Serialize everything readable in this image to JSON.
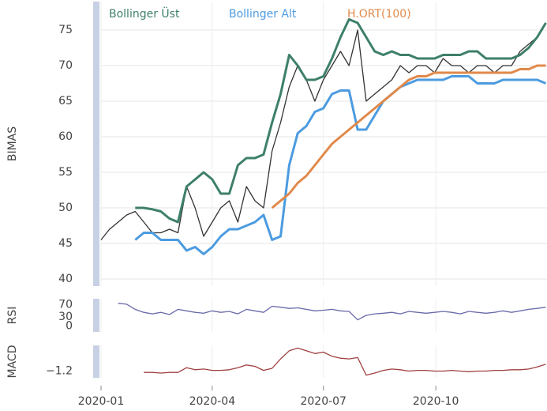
{
  "chart_data": [
    {
      "type": "line",
      "ylabel": "BIMAS",
      "xlim": [
        0,
        365
      ],
      "ylim": [
        39,
        79
      ],
      "yticks": [
        40,
        45,
        50,
        55,
        60,
        65,
        70,
        75
      ],
      "grid": true,
      "legend": "top",
      "x": [
        0,
        7,
        14,
        21,
        28,
        35,
        42,
        49,
        56,
        63,
        70,
        77,
        84,
        91,
        98,
        105,
        112,
        119,
        126,
        133,
        140,
        147,
        154,
        161,
        168,
        175,
        182,
        189,
        196,
        203,
        210,
        217,
        224,
        231,
        238,
        245,
        252,
        259,
        266,
        273,
        280,
        287,
        294,
        301,
        308,
        315,
        322,
        329,
        336,
        343,
        350,
        357,
        364
      ],
      "series": [
        {
          "color": "#333333",
          "values": [
            45.5,
            47,
            48,
            49,
            49.5,
            48,
            46.5,
            46.5,
            47,
            46.5,
            53,
            50,
            46,
            48,
            50,
            51,
            48,
            53,
            51,
            50,
            58,
            62,
            67,
            70,
            68,
            65,
            68,
            70,
            72,
            70,
            75,
            65,
            66,
            67,
            68,
            70,
            69,
            70,
            70,
            69,
            71,
            70,
            70,
            69,
            70,
            70,
            69,
            70,
            70,
            72,
            73,
            74,
            76
          ]
        },
        {
          "name": "Bollinger Üst",
          "color": "#3d7f6b",
          "values": [
            null,
            null,
            null,
            null,
            50,
            50,
            49.8,
            49.5,
            48.5,
            48,
            53,
            54,
            55,
            54,
            52,
            52,
            56,
            57,
            57,
            57.5,
            62,
            66,
            71.5,
            70,
            68,
            68,
            68.5,
            71,
            74,
            76.5,
            76,
            74,
            72,
            71.5,
            72,
            71.5,
            71.5,
            71,
            71,
            71,
            71.5,
            71.5,
            71.5,
            72,
            72,
            71,
            71,
            71,
            71,
            71.5,
            72.5,
            74,
            76
          ]
        },
        {
          "name": "Bollinger Alt",
          "color": "#4c9be0",
          "values": [
            null,
            null,
            null,
            null,
            45.5,
            46.5,
            46.5,
            45.5,
            45.5,
            45.5,
            44,
            44.5,
            43.5,
            44.5,
            46,
            47,
            47,
            47.5,
            48,
            49,
            45.5,
            46,
            56,
            60.5,
            61.5,
            63.5,
            64,
            66,
            66.5,
            66.5,
            61,
            61,
            63,
            65,
            66,
            67,
            67.5,
            68,
            68,
            68,
            68,
            68.5,
            68.5,
            68.5,
            67.5,
            67.5,
            67.5,
            68,
            68,
            68,
            68,
            68,
            67.5
          ]
        },
        {
          "name": "H.ORT(100)",
          "color": "#e0894a",
          "values": [
            null,
            null,
            null,
            null,
            null,
            null,
            null,
            null,
            null,
            null,
            null,
            null,
            null,
            null,
            null,
            null,
            null,
            null,
            null,
            null,
            50,
            51,
            52,
            53.5,
            54.5,
            56,
            57.5,
            59,
            60,
            61,
            62,
            63,
            64,
            65,
            66,
            67,
            68,
            68.5,
            68.5,
            69,
            69,
            69,
            69,
            69,
            69,
            69,
            69,
            69,
            69,
            69.5,
            69.5,
            70,
            70
          ]
        }
      ]
    },
    {
      "type": "line",
      "ylabel": "RSI",
      "xlim": [
        0,
        365
      ],
      "ylim": [
        -20,
        90
      ],
      "yticks": [
        0,
        30,
        70
      ],
      "x": [
        0,
        7,
        14,
        21,
        28,
        35,
        42,
        49,
        56,
        63,
        70,
        77,
        84,
        91,
        98,
        105,
        112,
        119,
        126,
        133,
        140,
        147,
        154,
        161,
        168,
        175,
        182,
        189,
        196,
        203,
        210,
        217,
        224,
        231,
        238,
        245,
        252,
        259,
        266,
        273,
        280,
        287,
        294,
        301,
        308,
        315,
        322,
        329,
        336,
        343,
        350,
        357,
        364
      ],
      "series": [
        {
          "color": "#6a6aaa",
          "values": [
            null,
            null,
            75,
            72,
            55,
            45,
            40,
            45,
            38,
            55,
            50,
            45,
            42,
            50,
            45,
            48,
            40,
            55,
            50,
            45,
            65,
            62,
            58,
            60,
            55,
            50,
            52,
            55,
            50,
            48,
            20,
            35,
            40,
            42,
            45,
            40,
            48,
            45,
            42,
            45,
            48,
            45,
            40,
            48,
            45,
            42,
            45,
            50,
            45,
            50,
            55,
            58,
            62
          ]
        }
      ]
    },
    {
      "type": "line",
      "ylabel": "MACD",
      "xlim": [
        0,
        365
      ],
      "ylim": [
        -1.7,
        0.7
      ],
      "yticks": [
        {
          "value": -1.2,
          "label": "−1.2"
        }
      ],
      "xticks": [
        {
          "value": 0,
          "label": "2020-01"
        },
        {
          "value": 91,
          "label": "2020-04"
        },
        {
          "value": 182,
          "label": "2020-07"
        },
        {
          "value": 274,
          "label": "2020-10"
        }
      ],
      "x": [
        0,
        7,
        14,
        21,
        28,
        35,
        42,
        49,
        56,
        63,
        70,
        77,
        84,
        91,
        98,
        105,
        112,
        119,
        126,
        133,
        140,
        147,
        154,
        161,
        168,
        175,
        182,
        189,
        196,
        203,
        210,
        217,
        224,
        231,
        238,
        245,
        252,
        259,
        266,
        273,
        280,
        287,
        294,
        301,
        308,
        315,
        322,
        329,
        336,
        343,
        350,
        357,
        364
      ],
      "series": [
        {
          "color": "#a04040",
          "values": [
            null,
            null,
            null,
            null,
            null,
            -1.3,
            -1.3,
            -1.35,
            -1.3,
            -1.3,
            -0.95,
            -1.1,
            -1.05,
            -1.15,
            -1.15,
            -1.1,
            -0.95,
            -0.75,
            -0.85,
            -1.15,
            -1.0,
            -0.3,
            0.3,
            0.5,
            0.3,
            0.1,
            0.2,
            -0.1,
            -0.25,
            -0.3,
            -0.2,
            -1.5,
            -1.35,
            -1.15,
            -1.05,
            -1.1,
            -1.2,
            -1.15,
            -1.15,
            -1.2,
            -1.2,
            -1.15,
            -1.2,
            -1.25,
            -1.2,
            -1.2,
            -1.15,
            -1.15,
            -1.1,
            -1.1,
            -1.05,
            -0.9,
            -0.7
          ]
        }
      ]
    }
  ]
}
